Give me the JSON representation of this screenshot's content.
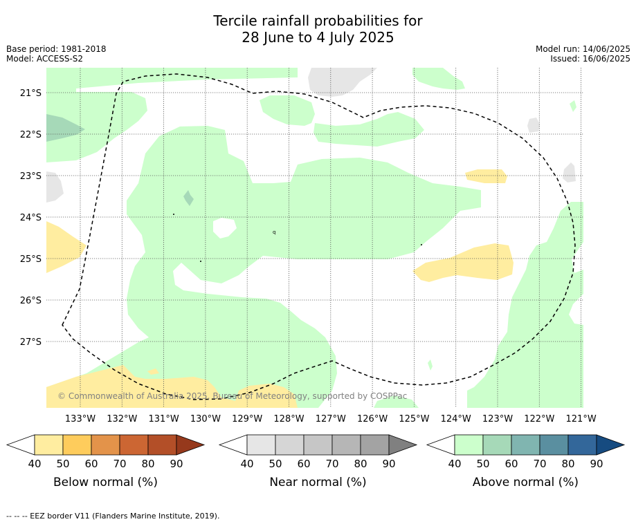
{
  "title_line1": "Tercile rainfall probabilities for",
  "title_line2": "28 June to 4 July 2025",
  "meta_left": {
    "base_period": "Base period: 1981-2018",
    "model": "Model: ACCESS-S2"
  },
  "meta_right": {
    "model_run": "Model run: 14/06/2025",
    "issued": "Issued: 16/06/2025"
  },
  "copyright": "© Commonwealth of Australia 2025, Bureau of Meteorology, supported by COSPPac",
  "lat_ticks": [
    "21°S",
    "22°S",
    "23°S",
    "24°S",
    "25°S",
    "26°S",
    "27°S"
  ],
  "lon_ticks": [
    "133°W",
    "132°W",
    "131°W",
    "130°W",
    "129°W",
    "128°W",
    "127°W",
    "126°W",
    "125°W",
    "124°W",
    "123°W",
    "122°W",
    "121°W"
  ],
  "colorbars": [
    {
      "label": "Below normal (%)",
      "ticks": [
        "40",
        "50",
        "60",
        "70",
        "80",
        "90"
      ],
      "colors": [
        "#ffffff",
        "#ffeda0",
        "#fecc5c",
        "#e3934a",
        "#cc6633",
        "#b34f28",
        "#96391c"
      ]
    },
    {
      "label": "Near normal (%)",
      "ticks": [
        "40",
        "50",
        "60",
        "70",
        "80",
        "90"
      ],
      "colors": [
        "#ffffff",
        "#e6e6e6",
        "#d6d6d6",
        "#c6c6c6",
        "#b6b6b6",
        "#a3a3a3",
        "#808080"
      ]
    },
    {
      "label": "Above normal (%)",
      "ticks": [
        "40",
        "50",
        "60",
        "70",
        "80",
        "90"
      ],
      "colors": [
        "#ffffff",
        "#ccffcc",
        "#a6d9b8",
        "#80b5b0",
        "#5a8fa0",
        "#33679a",
        "#164b80"
      ]
    }
  ],
  "footer": "--  --  -- EEZ border V11 (Flanders Marine Institute, 2019).",
  "legend_colors": {
    "below_40": "#ffeda0",
    "near_40": "#e6e6e6",
    "above_40": "#ccffcc",
    "above_50": "#a6d9b8"
  }
}
